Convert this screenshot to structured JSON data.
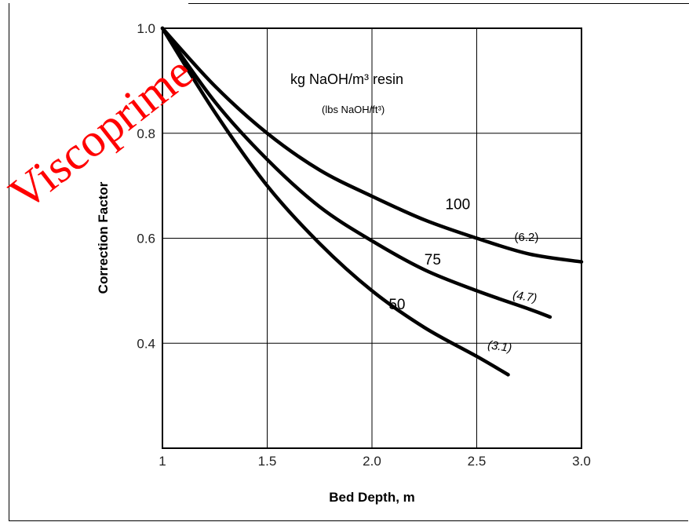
{
  "chart_data": {
    "type": "line",
    "title": "",
    "xlabel": "Bed Depth, m",
    "ylabel": "Correction Factor",
    "xlim": [
      1.0,
      3.0
    ],
    "ylim": [
      0.2,
      1.0
    ],
    "x_ticks": [
      "1",
      "1.5",
      "2.0",
      "2.5",
      "3.0"
    ],
    "y_ticks": [
      "1.0",
      "0.8",
      "0.6",
      "0.4"
    ],
    "grid": true,
    "legend": {
      "title": "kg NaOH/m³ resin",
      "subtitle": "(lbs NaOH/ft³)"
    },
    "series": [
      {
        "name": "100",
        "sub": "(6.2)",
        "sub_italic": false,
        "x": [
          1.0,
          1.25,
          1.5,
          1.75,
          2.0,
          2.25,
          2.5,
          2.75,
          3.0
        ],
        "y": [
          1.0,
          0.89,
          0.8,
          0.73,
          0.68,
          0.635,
          0.6,
          0.57,
          0.555
        ]
      },
      {
        "name": "75",
        "sub": "(4.7)",
        "sub_italic": true,
        "x": [
          1.0,
          1.25,
          1.5,
          1.75,
          2.0,
          2.25,
          2.5,
          2.75,
          2.85
        ],
        "y": [
          1.0,
          0.86,
          0.75,
          0.66,
          0.595,
          0.54,
          0.5,
          0.465,
          0.45
        ]
      },
      {
        "name": "50",
        "sub": "(3.1)",
        "sub_italic": true,
        "x": [
          1.0,
          1.25,
          1.5,
          1.75,
          2.0,
          2.25,
          2.5,
          2.65
        ],
        "y": [
          1.0,
          0.84,
          0.7,
          0.59,
          0.5,
          0.43,
          0.375,
          0.34
        ]
      }
    ]
  },
  "watermark": {
    "text": "Viscoprime",
    "color": "#ff0000"
  }
}
